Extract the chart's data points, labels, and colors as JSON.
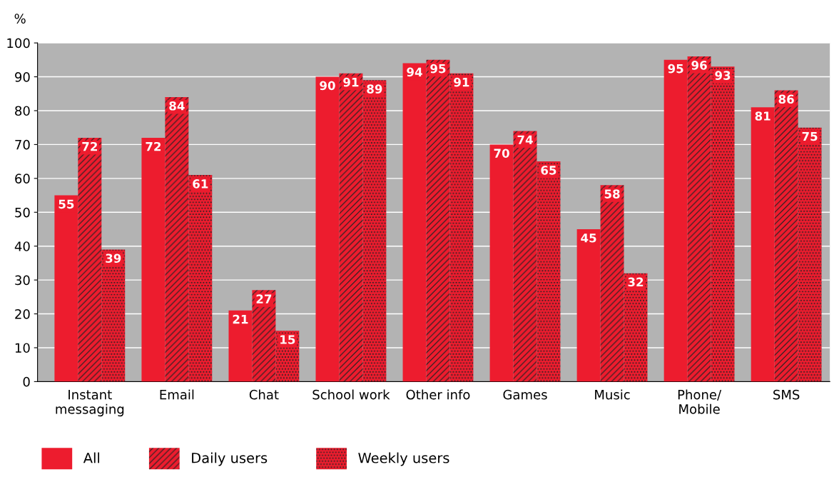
{
  "chart_data": {
    "type": "bar",
    "ylabel": "%",
    "categories": [
      "Instant\nmessaging",
      "Email",
      "Chat",
      "School work",
      "Other info",
      "Games",
      "Music",
      "Phone/\nMobile",
      "SMS"
    ],
    "series": [
      {
        "name": "All",
        "color": "#ed1c2e",
        "values": [
          55,
          72,
          21,
          90,
          94,
          70,
          45,
          95,
          81
        ]
      },
      {
        "name": "Daily users",
        "color": "#ed1c2e",
        "values": [
          72,
          84,
          27,
          91,
          95,
          74,
          58,
          96,
          86
        ]
      },
      {
        "name": "Weekly users",
        "color": "#ed1c2e",
        "values": [
          39,
          61,
          15,
          89,
          91,
          65,
          32,
          93,
          75
        ]
      }
    ],
    "ylim": [
      0,
      100
    ],
    "yticks": [
      0,
      10,
      20,
      30,
      40,
      50,
      60,
      70,
      80,
      90,
      100
    ],
    "grid": "y",
    "legend": "bottom",
    "data_labels": true
  }
}
